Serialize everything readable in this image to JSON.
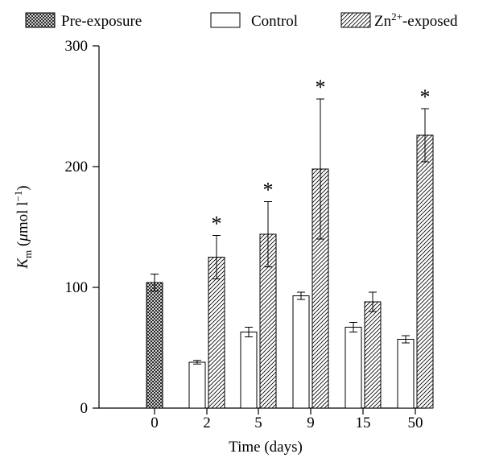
{
  "chart_data": {
    "type": "bar",
    "xlabel": "Time (days)",
    "ylabel_main": "K",
    "ylabel_sub": "m",
    "ylabel_open": " (",
    "ylabel_mu": "μ",
    "ylabel_unit": "mol l",
    "ylabel_exp": "−1",
    "ylabel_close": ")",
    "ylim": [
      0,
      300
    ],
    "yticks": [
      "0",
      "100",
      "200",
      "300"
    ],
    "categories": [
      "0",
      "2",
      "5",
      "9",
      "15",
      "50"
    ],
    "legend_position": "top",
    "grid": false,
    "series": [
      {
        "name": "Pre-exposure",
        "pattern": "crosshatch",
        "color": "#000000",
        "values": [
          104,
          null,
          null,
          null,
          null,
          null
        ],
        "errors": [
          7,
          null,
          null,
          null,
          null,
          null
        ]
      },
      {
        "name": "Control",
        "pattern": "open",
        "color": "#000000",
        "values": [
          null,
          38,
          63,
          93,
          67,
          57
        ],
        "errors": [
          null,
          1.5,
          4,
          3,
          4,
          3
        ]
      },
      {
        "name": "Zn2+-exposed",
        "name_base": "Zn",
        "name_sup": "2+",
        "name_rest": "-exposed",
        "pattern": "diagonal",
        "color": "#000000",
        "values": [
          null,
          125,
          144,
          198,
          88,
          226
        ],
        "errors": [
          null,
          18,
          27,
          58,
          8,
          22
        ]
      }
    ],
    "significance": {
      "symbol": "*",
      "categories": [
        "2",
        "5",
        "9",
        "50"
      ],
      "series": "Zn2+-exposed"
    }
  }
}
